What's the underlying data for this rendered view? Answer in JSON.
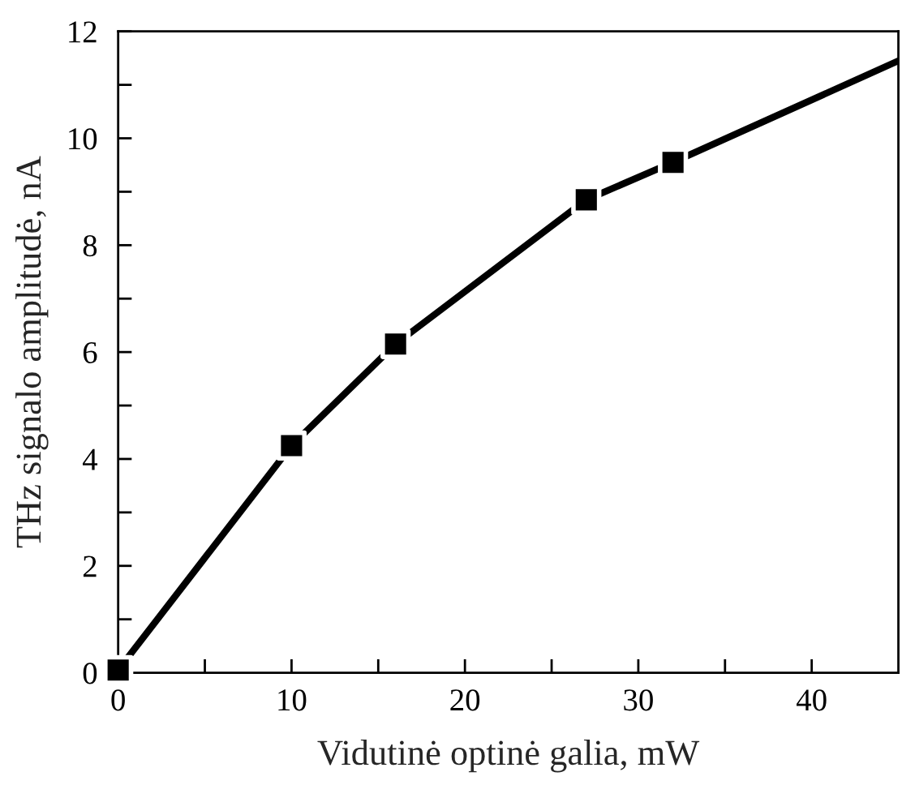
{
  "chart_data": {
    "type": "line",
    "xlabel": "Vidutinė optinė galia, mW",
    "ylabel": "THz signalo amplitudė, nA",
    "series": [
      {
        "color": "#000000",
        "marker": "none",
        "x": [
          0,
          10,
          16,
          27,
          32,
          45
        ],
        "values": [
          0.05,
          4.25,
          6.15,
          8.85,
          9.55,
          11.45
        ]
      },
      {
        "type": "scatter",
        "color": "#000000",
        "marker": "square",
        "x": [
          0,
          10,
          16,
          27,
          32
        ],
        "values": [
          0.05,
          4.25,
          6.15,
          8.85,
          9.55
        ]
      }
    ],
    "xlim": [
      0,
      45
    ],
    "ylim": [
      0,
      12
    ],
    "xticks": [
      0,
      {
        "value": 5,
        "label": null
      },
      10,
      {
        "value": 15,
        "label": null
      },
      20,
      {
        "value": 25,
        "label": null
      },
      30,
      {
        "value": 35,
        "label": null
      },
      40
    ],
    "yticks": [
      0,
      {
        "value": 1,
        "label": null
      },
      2,
      {
        "value": 3,
        "label": null
      },
      4,
      {
        "value": 5,
        "label": null
      },
      6,
      {
        "value": 7,
        "label": null
      },
      8,
      {
        "value": 9,
        "label": null
      },
      10,
      {
        "value": 11,
        "label": null
      },
      12
    ],
    "grid": false,
    "legend": false
  }
}
